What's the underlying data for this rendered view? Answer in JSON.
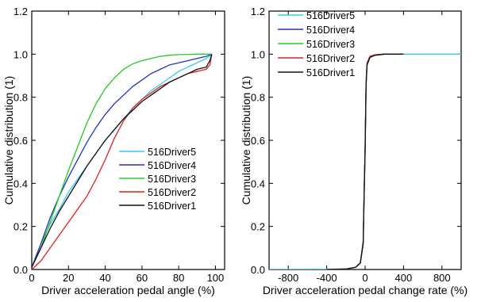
{
  "colors": {
    "516Driver5": "#33ccee",
    "516Driver4": "#2233bb",
    "516Driver3": "#22cc22",
    "516Driver2": "#dd2222",
    "516Driver1": "#111111",
    "axis": "#000000",
    "background": "#ffffff"
  },
  "chart_data": [
    {
      "type": "line",
      "title": "",
      "xlabel": "Driver acceleration pedal angle (%)",
      "ylabel": "Cumulative distribution (1)",
      "xlim": [
        0,
        105
      ],
      "ylim": [
        0,
        1.2
      ],
      "xticks": [
        "0",
        "20",
        "40",
        "60",
        "80",
        "100"
      ],
      "yticks": [
        "0.0",
        "0.2",
        "0.4",
        "0.6",
        "0.8",
        "1.0",
        "1.2"
      ],
      "grid": false,
      "legend": {
        "position": "center-right",
        "order": [
          "516Driver5",
          "516Driver4",
          "516Driver3",
          "516Driver2",
          "516Driver1"
        ]
      },
      "series": [
        {
          "name": "516Driver5",
          "color_key": "516Driver5",
          "x": [
            0,
            5,
            10,
            15,
            20,
            25,
            30,
            35,
            40,
            45,
            50,
            55,
            60,
            65,
            70,
            75,
            80,
            85,
            90,
            95,
            98
          ],
          "y": [
            0.01,
            0.12,
            0.21,
            0.28,
            0.36,
            0.42,
            0.48,
            0.54,
            0.6,
            0.65,
            0.7,
            0.75,
            0.79,
            0.83,
            0.86,
            0.89,
            0.92,
            0.94,
            0.96,
            0.98,
            1.0
          ]
        },
        {
          "name": "516Driver4",
          "color_key": "516Driver4",
          "x": [
            0,
            5,
            10,
            15,
            20,
            25,
            30,
            35,
            40,
            45,
            50,
            55,
            60,
            65,
            70,
            75,
            80,
            85,
            90,
            95,
            98
          ],
          "y": [
            0.01,
            0.12,
            0.24,
            0.34,
            0.43,
            0.51,
            0.59,
            0.66,
            0.72,
            0.77,
            0.81,
            0.85,
            0.88,
            0.91,
            0.93,
            0.95,
            0.96,
            0.97,
            0.98,
            0.99,
            1.0
          ]
        },
        {
          "name": "516Driver3",
          "color_key": "516Driver3",
          "x": [
            0,
            5,
            10,
            15,
            20,
            25,
            30,
            35,
            40,
            45,
            50,
            55,
            60,
            65,
            70,
            75,
            80,
            85,
            90,
            95,
            98
          ],
          "y": [
            0.01,
            0.1,
            0.22,
            0.34,
            0.46,
            0.57,
            0.68,
            0.77,
            0.84,
            0.89,
            0.93,
            0.955,
            0.97,
            0.98,
            0.99,
            0.995,
            0.998,
            0.999,
            1.0,
            1.0,
            1.0
          ]
        },
        {
          "name": "516Driver2",
          "color_key": "516Driver2",
          "x": [
            0,
            5,
            10,
            15,
            20,
            25,
            30,
            35,
            40,
            45,
            50,
            55,
            60,
            65,
            70,
            75,
            80,
            85,
            90,
            95,
            97,
            98
          ],
          "y": [
            0.0,
            0.04,
            0.1,
            0.16,
            0.22,
            0.28,
            0.34,
            0.42,
            0.51,
            0.61,
            0.69,
            0.75,
            0.79,
            0.82,
            0.85,
            0.87,
            0.89,
            0.91,
            0.92,
            0.93,
            0.95,
            1.0
          ]
        },
        {
          "name": "516Driver1",
          "color_key": "516Driver1",
          "x": [
            0,
            5,
            10,
            15,
            20,
            25,
            30,
            35,
            40,
            45,
            50,
            55,
            60,
            65,
            70,
            75,
            80,
            85,
            90,
            95,
            97,
            98
          ],
          "y": [
            0.01,
            0.1,
            0.19,
            0.27,
            0.34,
            0.41,
            0.48,
            0.54,
            0.6,
            0.65,
            0.7,
            0.74,
            0.78,
            0.81,
            0.84,
            0.87,
            0.89,
            0.91,
            0.93,
            0.94,
            0.97,
            1.0
          ]
        }
      ]
    },
    {
      "type": "line",
      "title": "",
      "xlabel": "Driver acceleration pedal change rate (%)",
      "ylabel": "Cumulative distribution (1)",
      "xlim": [
        -1000,
        1000
      ],
      "ylim": [
        0,
        1.2
      ],
      "xticks": [
        "-800",
        "-400",
        "0",
        "400",
        "800"
      ],
      "yticks": [
        "0.0",
        "0.2",
        "0.4",
        "0.6",
        "0.8",
        "1.0",
        "1.2"
      ],
      "grid": false,
      "legend": {
        "position": "top-left",
        "order": [
          "516Driver5",
          "516Driver4",
          "516Driver3",
          "516Driver2",
          "516Driver1"
        ]
      },
      "series": [
        {
          "name": "516Driver5",
          "color_key": "516Driver5",
          "x": [
            -1000,
            -200,
            -100,
            -50,
            -20,
            -10,
            0,
            10,
            20,
            50,
            100,
            200,
            1000
          ],
          "y": [
            0.0,
            0.002,
            0.01,
            0.03,
            0.12,
            0.35,
            0.55,
            0.85,
            0.95,
            0.985,
            0.995,
            1.0,
            1.0
          ]
        },
        {
          "name": "516Driver4",
          "color_key": "516Driver4",
          "x": [
            -400,
            -200,
            -100,
            -50,
            -20,
            -10,
            0,
            10,
            20,
            50,
            100,
            200,
            400
          ],
          "y": [
            0.0,
            0.002,
            0.01,
            0.03,
            0.13,
            0.36,
            0.56,
            0.86,
            0.95,
            0.985,
            0.995,
            1.0,
            1.0
          ]
        },
        {
          "name": "516Driver3",
          "color_key": "516Driver3",
          "x": [
            -400,
            -200,
            -100,
            -50,
            -20,
            -10,
            0,
            10,
            20,
            50,
            100,
            200,
            400
          ],
          "y": [
            0.0,
            0.002,
            0.01,
            0.03,
            0.12,
            0.34,
            0.54,
            0.85,
            0.95,
            0.985,
            0.995,
            1.0,
            1.0
          ]
        },
        {
          "name": "516Driver2",
          "color_key": "516Driver2",
          "x": [
            -400,
            -200,
            -100,
            -50,
            -20,
            -10,
            0,
            10,
            20,
            50,
            100,
            200,
            400
          ],
          "y": [
            0.0,
            0.002,
            0.01,
            0.03,
            0.13,
            0.37,
            0.57,
            0.87,
            0.96,
            0.99,
            0.997,
            1.0,
            1.0
          ]
        },
        {
          "name": "516Driver1",
          "color_key": "516Driver1",
          "x": [
            -400,
            -200,
            -100,
            -50,
            -20,
            -10,
            0,
            10,
            20,
            50,
            100,
            200,
            400
          ],
          "y": [
            0.0,
            0.002,
            0.01,
            0.03,
            0.12,
            0.35,
            0.55,
            0.86,
            0.95,
            0.985,
            0.995,
            1.0,
            1.0
          ]
        }
      ]
    }
  ]
}
